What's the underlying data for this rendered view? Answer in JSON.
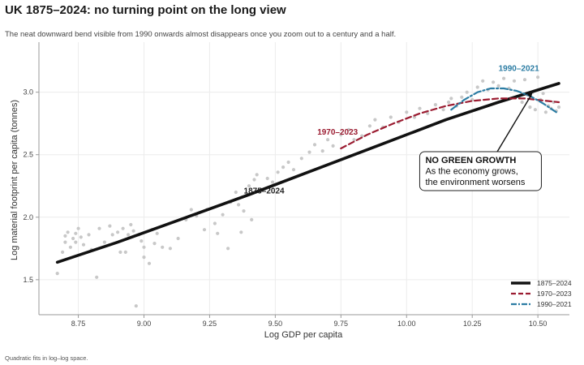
{
  "title": "UK 1875–2024: no turning point on the long view",
  "subtitle": "The neat downward bend visible from 1990 onwards almost disappears once you zoom out to a century and a half.",
  "caption": "Quadratic fits in log–log space.",
  "colors": {
    "fit_long": "#111111",
    "fit_1970": "#9b1c31",
    "fit_1990": "#2b7ca3",
    "points": "#c8c8c8",
    "grid": "#ececec",
    "axis": "#9a9a9a"
  },
  "chart_data": {
    "type": "scatter",
    "xlabel": "Log GDP per capita",
    "ylabel": "Log material footprint per capita (tonnes)",
    "xlim": [
      8.6,
      10.62
    ],
    "ylim": [
      1.22,
      3.4
    ],
    "xticks": [
      8.75,
      9.0,
      9.25,
      9.5,
      9.75,
      10.0,
      10.25,
      10.5
    ],
    "yticks": [
      1.5,
      2.0,
      2.5,
      3.0
    ],
    "xtick_labels": [
      "8.75",
      "9.00",
      "9.25",
      "9.50",
      "9.75",
      "10.00",
      "10.25",
      "10.50"
    ],
    "ytick_labels": [
      "1.5",
      "2.0",
      "2.5",
      "3.0"
    ],
    "grid": true,
    "legend_position": "bottom-right",
    "points": [
      [
        8.67,
        1.55
      ],
      [
        8.69,
        1.72
      ],
      [
        8.7,
        1.8
      ],
      [
        8.7,
        1.85
      ],
      [
        8.71,
        1.88
      ],
      [
        8.72,
        1.76
      ],
      [
        8.73,
        1.83
      ],
      [
        8.74,
        1.87
      ],
      [
        8.74,
        1.8
      ],
      [
        8.75,
        1.91
      ],
      [
        8.76,
        1.84
      ],
      [
        8.77,
        1.78
      ],
      [
        8.79,
        1.86
      ],
      [
        8.8,
        1.74
      ],
      [
        8.82,
        1.52
      ],
      [
        8.83,
        1.91
      ],
      [
        8.85,
        1.8
      ],
      [
        8.87,
        1.93
      ],
      [
        8.88,
        1.86
      ],
      [
        8.9,
        1.88
      ],
      [
        8.91,
        1.72
      ],
      [
        8.92,
        1.91
      ],
      [
        8.93,
        1.72
      ],
      [
        8.94,
        1.86
      ],
      [
        8.95,
        1.94
      ],
      [
        8.96,
        1.89
      ],
      [
        8.97,
        1.29
      ],
      [
        8.98,
        1.86
      ],
      [
        8.99,
        1.81
      ],
      [
        9.0,
        1.76
      ],
      [
        9.0,
        1.68
      ],
      [
        9.02,
        1.63
      ],
      [
        9.03,
        1.9
      ],
      [
        9.04,
        1.79
      ],
      [
        9.05,
        1.87
      ],
      [
        9.07,
        1.76
      ],
      [
        9.1,
        1.75
      ],
      [
        9.13,
        1.83
      ],
      [
        9.16,
        1.98
      ],
      [
        9.18,
        2.06
      ],
      [
        9.2,
        2.01
      ],
      [
        9.23,
        1.9
      ],
      [
        9.24,
        2.06
      ],
      [
        9.27,
        1.95
      ],
      [
        9.28,
        1.87
      ],
      [
        9.3,
        2.02
      ],
      [
        9.32,
        1.75
      ],
      [
        9.33,
        2.12
      ],
      [
        9.35,
        2.2
      ],
      [
        9.36,
        2.1
      ],
      [
        9.37,
        1.88
      ],
      [
        9.38,
        2.05
      ],
      [
        9.39,
        2.18
      ],
      [
        9.4,
        2.25
      ],
      [
        9.41,
        1.98
      ],
      [
        9.42,
        2.3
      ],
      [
        9.43,
        2.34
      ],
      [
        9.45,
        2.22
      ],
      [
        9.47,
        2.31
      ],
      [
        9.49,
        2.28
      ],
      [
        9.51,
        2.36
      ],
      [
        9.53,
        2.4
      ],
      [
        9.55,
        2.44
      ],
      [
        9.57,
        2.38
      ],
      [
        9.6,
        2.47
      ],
      [
        9.63,
        2.52
      ],
      [
        9.65,
        2.58
      ],
      [
        9.68,
        2.53
      ],
      [
        9.7,
        2.62
      ],
      [
        9.72,
        2.57
      ],
      [
        9.75,
        2.66
      ],
      [
        9.78,
        2.7
      ],
      [
        9.8,
        2.62
      ],
      [
        9.83,
        2.65
      ],
      [
        9.86,
        2.73
      ],
      [
        9.88,
        2.78
      ],
      [
        9.91,
        2.72
      ],
      [
        9.94,
        2.8
      ],
      [
        9.97,
        2.76
      ],
      [
        10.0,
        2.84
      ],
      [
        10.03,
        2.8
      ],
      [
        10.05,
        2.87
      ],
      [
        10.08,
        2.83
      ],
      [
        10.11,
        2.9
      ],
      [
        10.14,
        2.86
      ],
      [
        10.16,
        2.92
      ],
      [
        10.17,
        2.95
      ],
      [
        10.19,
        2.89
      ],
      [
        10.21,
        2.96
      ],
      [
        10.23,
        3.0
      ],
      [
        10.25,
        2.94
      ],
      [
        10.27,
        3.04
      ],
      [
        10.29,
        3.09
      ],
      [
        10.31,
        3.02
      ],
      [
        10.33,
        3.08
      ],
      [
        10.35,
        3.05
      ],
      [
        10.37,
        3.11
      ],
      [
        10.39,
        3.03
      ],
      [
        10.41,
        3.09
      ],
      [
        10.43,
        2.96
      ],
      [
        10.44,
        2.92
      ],
      [
        10.45,
        3.1
      ],
      [
        10.46,
        2.98
      ],
      [
        10.47,
        2.88
      ],
      [
        10.48,
        3.0
      ],
      [
        10.49,
        2.86
      ],
      [
        10.5,
        3.12
      ],
      [
        10.51,
        2.94
      ],
      [
        10.52,
        2.99
      ],
      [
        10.53,
        2.84
      ],
      [
        10.54,
        2.89
      ],
      [
        10.55,
        2.87
      ],
      [
        10.56,
        2.92
      ],
      [
        10.57,
        2.85
      ],
      [
        10.58,
        2.88
      ]
    ],
    "series": [
      {
        "name": "1875–2024",
        "style": "solid",
        "color": "#111111",
        "x": [
          8.67,
          8.9,
          9.15,
          9.4,
          9.65,
          9.9,
          10.15,
          10.35,
          10.58
        ],
        "y": [
          1.64,
          1.8,
          1.99,
          2.18,
          2.38,
          2.58,
          2.78,
          2.92,
          3.07
        ]
      },
      {
        "name": "1970–2023",
        "style": "dashed",
        "color": "#9b1c31",
        "x": [
          9.75,
          9.85,
          9.95,
          10.05,
          10.15,
          10.25,
          10.35,
          10.45,
          10.58
        ],
        "y": [
          2.55,
          2.66,
          2.75,
          2.83,
          2.89,
          2.93,
          2.95,
          2.95,
          2.92
        ]
      },
      {
        "name": "1990–2021",
        "style": "dashdot",
        "color": "#2b7ca3",
        "x": [
          10.17,
          10.22,
          10.27,
          10.32,
          10.37,
          10.42,
          10.47,
          10.52,
          10.57
        ],
        "y": [
          2.86,
          2.94,
          3.0,
          3.03,
          3.03,
          3.01,
          2.97,
          2.91,
          2.84
        ]
      }
    ],
    "series_labels": [
      {
        "text": "1875–2024",
        "x": 9.38,
        "y": 2.19,
        "color": "#222222"
      },
      {
        "text": "1970–2023",
        "x": 9.66,
        "y": 2.66,
        "color": "#9b1c31"
      },
      {
        "text": "1990–2021",
        "x": 10.35,
        "y": 3.17,
        "color": "#2b7ca3"
      }
    ],
    "annotation": {
      "lines": [
        "NO GREEN GROWTH",
        "As the economy grows,",
        "the environment worsens"
      ],
      "box_anchor": [
        10.05,
        2.2
      ],
      "arrow_to": [
        10.48,
        3.0
      ]
    },
    "legend": [
      "1875–2024",
      "1970–2023",
      "1990–2021"
    ]
  }
}
